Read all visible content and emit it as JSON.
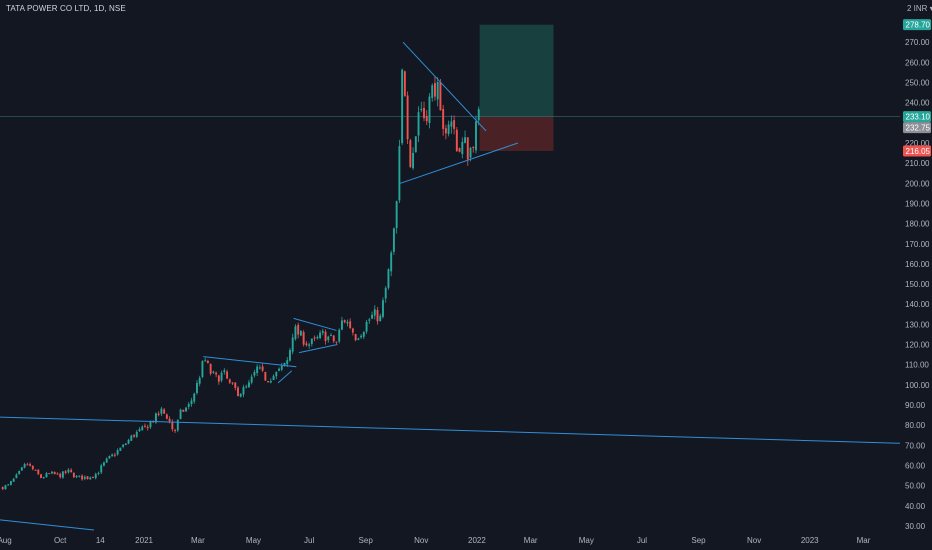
{
  "header": {
    "symbol_label": "TATA POWER CO LTD, 1D, NSE"
  },
  "axis": {
    "currency": "2 INR ▾"
  },
  "colors": {
    "background": "#131722",
    "up": "#26a69a",
    "down": "#ef5350",
    "trendline": "#2f8fd8",
    "profit_zone": "#17403f",
    "loss_zone": "#4a2226",
    "target_badge": "#26a69a",
    "last_badge": "#8e9098",
    "stop_badge": "#ef5350"
  },
  "chart_data": {
    "type": "candlestick",
    "symbol": "TATA POWER CO LTD",
    "interval": "1D",
    "exchange": "NSE",
    "ylim": [
      25,
      284
    ],
    "y_ticks": [
      30,
      40,
      50,
      60,
      70,
      80,
      90,
      100,
      110,
      120,
      130,
      140,
      150,
      160,
      170,
      180,
      190,
      200,
      210,
      220,
      230,
      240,
      250,
      260,
      270
    ],
    "y_tick_labels": [
      "30.00",
      "40.00",
      "50.00",
      "60.00",
      "70.00",
      "80.00",
      "90.00",
      "100.00",
      "110.00",
      "120.00",
      "130.00",
      "140.00",
      "150.00",
      "160.00",
      "170.00",
      "180.00",
      "190.00",
      "200.00",
      "210.00",
      "220.00",
      "230.00",
      "240.00",
      "250.00",
      "260.00",
      "270.00"
    ],
    "x_ticks": [
      {
        "label": "Aug",
        "date": "2020-08-01"
      },
      {
        "label": "Oct",
        "date": "2020-10-01"
      },
      {
        "label": "14",
        "date": "2020-11-14"
      },
      {
        "label": "2021",
        "date": "2021-01-01"
      },
      {
        "label": "Mar",
        "date": "2021-03-01"
      },
      {
        "label": "May",
        "date": "2021-05-01"
      },
      {
        "label": "Jul",
        "date": "2021-07-01"
      },
      {
        "label": "Sep",
        "date": "2021-09-01"
      },
      {
        "label": "Nov",
        "date": "2021-11-01"
      },
      {
        "label": "2022",
        "date": "2022-01-01"
      },
      {
        "label": "Mar",
        "date": "2022-03-01"
      },
      {
        "label": "May",
        "date": "2022-05-01"
      },
      {
        "label": "Jul",
        "date": "2022-07-01"
      },
      {
        "label": "Sep",
        "date": "2022-09-01"
      },
      {
        "label": "Nov",
        "date": "2022-11-01"
      },
      {
        "label": "2023",
        "date": "2023-01-01"
      },
      {
        "label": "Mar",
        "date": "2023-03-01"
      }
    ],
    "price_path": [
      [
        "2020-07-27",
        49
      ],
      [
        "2020-08-05",
        50
      ],
      [
        "2020-08-15",
        55
      ],
      [
        "2020-08-25",
        61
      ],
      [
        "2020-09-01",
        58
      ],
      [
        "2020-09-10",
        54
      ],
      [
        "2020-09-20",
        56
      ],
      [
        "2020-09-30",
        55
      ],
      [
        "2020-10-10",
        57
      ],
      [
        "2020-10-20",
        54
      ],
      [
        "2020-10-31",
        54
      ],
      [
        "2020-11-10",
        56
      ],
      [
        "2020-11-20",
        62
      ],
      [
        "2020-11-30",
        66
      ],
      [
        "2020-12-10",
        70
      ],
      [
        "2020-12-20",
        75
      ],
      [
        "2020-12-31",
        78
      ],
      [
        "2021-01-10",
        82
      ],
      [
        "2021-01-20",
        87
      ],
      [
        "2021-01-27",
        84
      ],
      [
        "2021-02-03",
        76
      ],
      [
        "2021-02-10",
        86
      ],
      [
        "2021-02-20",
        90
      ],
      [
        "2021-02-28",
        100
      ],
      [
        "2021-03-08",
        113
      ],
      [
        "2021-03-15",
        106
      ],
      [
        "2021-03-22",
        103
      ],
      [
        "2021-03-29",
        106
      ],
      [
        "2021-04-05",
        100
      ],
      [
        "2021-04-15",
        96
      ],
      [
        "2021-04-25",
        99
      ],
      [
        "2021-05-05",
        108
      ],
      [
        "2021-05-15",
        103
      ],
      [
        "2021-05-25",
        105
      ],
      [
        "2021-06-01",
        108
      ],
      [
        "2021-06-08",
        113
      ],
      [
        "2021-06-14",
        128
      ],
      [
        "2021-06-22",
        124
      ],
      [
        "2021-06-30",
        120
      ],
      [
        "2021-07-08",
        122
      ],
      [
        "2021-07-16",
        125
      ],
      [
        "2021-07-24",
        123
      ],
      [
        "2021-07-31",
        121
      ],
      [
        "2021-08-07",
        133
      ],
      [
        "2021-08-14",
        130
      ],
      [
        "2021-08-21",
        124
      ],
      [
        "2021-08-28",
        127
      ],
      [
        "2021-09-04",
        132
      ],
      [
        "2021-09-10",
        135
      ],
      [
        "2021-09-17",
        133
      ],
      [
        "2021-09-24",
        150
      ],
      [
        "2021-10-01",
        170
      ],
      [
        "2021-10-06",
        195
      ],
      [
        "2021-10-09",
        225
      ],
      [
        "2021-10-12",
        268
      ],
      [
        "2021-10-15",
        236
      ],
      [
        "2021-10-20",
        212
      ],
      [
        "2021-10-25",
        220
      ],
      [
        "2021-10-30",
        240
      ],
      [
        "2021-11-05",
        232
      ],
      [
        "2021-11-12",
        245
      ],
      [
        "2021-11-18",
        250
      ],
      [
        "2021-11-24",
        222
      ],
      [
        "2021-11-30",
        232
      ],
      [
        "2021-12-06",
        228
      ],
      [
        "2021-12-12",
        215
      ],
      [
        "2021-12-18",
        221
      ],
      [
        "2021-12-23",
        214
      ],
      [
        "2021-12-28",
        222
      ],
      [
        "2022-01-03",
        232.75
      ]
    ],
    "candle_interval_days": 3,
    "last_price": 232.75,
    "position": {
      "type": "long",
      "entry": 233.1,
      "target": 278.7,
      "stop": 216.05,
      "start_date": "2022-01-04",
      "end_date": "2022-03-26"
    },
    "price_labels": [
      {
        "role": "target",
        "label": "278.70",
        "value": 278.7
      },
      {
        "role": "entry",
        "label": "233.10",
        "value": 233.1
      },
      {
        "role": "last",
        "label": "232.75",
        "value": 232.75
      },
      {
        "role": "stop",
        "label": "216.05",
        "value": 216.05
      }
    ],
    "trendlines": [
      {
        "name": "long-term-support",
        "points": [
          [
            "2020-07-27",
            84
          ],
          [
            "2023-04-10",
            71
          ]
        ]
      },
      {
        "name": "lower-left-line",
        "points": [
          [
            "2020-07-27",
            33
          ],
          [
            "2020-11-07",
            28
          ]
        ]
      },
      {
        "name": "pennant1-top",
        "points": [
          [
            "2021-03-07",
            114
          ],
          [
            "2021-06-17",
            109
          ]
        ]
      },
      {
        "name": "pennant1-bottom",
        "points": [
          [
            "2021-05-28",
            101
          ],
          [
            "2021-06-12",
            107
          ]
        ]
      },
      {
        "name": "pennant2-top",
        "points": [
          [
            "2021-06-14",
            133
          ],
          [
            "2021-07-31",
            127
          ]
        ]
      },
      {
        "name": "pennant2-bottom",
        "points": [
          [
            "2021-06-20",
            116
          ],
          [
            "2021-08-01",
            120
          ]
        ]
      },
      {
        "name": "triangle-top",
        "points": [
          [
            "2021-10-12",
            270
          ],
          [
            "2022-01-11",
            226
          ]
        ]
      },
      {
        "name": "triangle-bottom",
        "points": [
          [
            "2021-10-09",
            200
          ],
          [
            "2022-02-15",
            220
          ]
        ]
      }
    ]
  }
}
